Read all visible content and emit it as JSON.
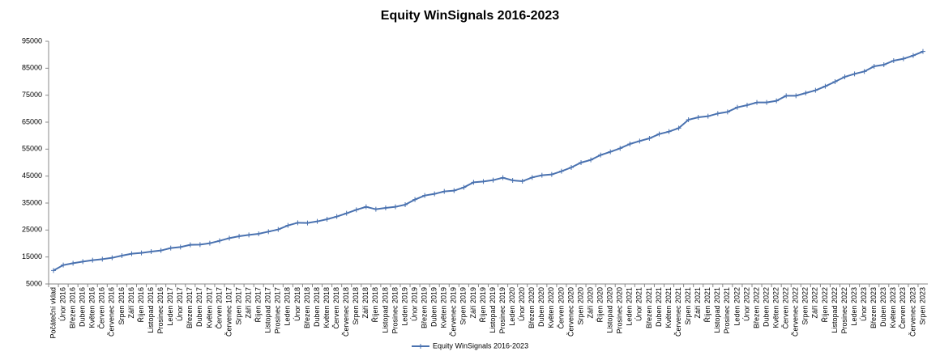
{
  "chart_data": {
    "type": "line",
    "title": "Equity WinSignals 2016-2023",
    "categories": [
      "Počáteční vklad",
      "Únor 2016",
      "Březen 2016",
      "Duben 2016",
      "Květen 2016",
      "Červen 2016",
      "Červenec 2016",
      "Srpen 2016",
      "Září 2016",
      "Říjen 2016",
      "Listopad 2016",
      "Prosinec 2016",
      "Leden 2017",
      "Únor 2017",
      "Březen 2017",
      "Duben 2017",
      "Květen 2017",
      "Červen 2017",
      "Červenec 1017",
      "Srpen 2017",
      "Září 2017",
      "Říjen 2017",
      "Listopad 2017",
      "Prosinec 2017",
      "Leden 2018",
      "Únor 2018",
      "Březen 2018",
      "Duben 2018",
      "Květen 2018",
      "Červen 2018",
      "Červenec 2018",
      "Srpen 2018",
      "Září 2018",
      "Říjen 2018",
      "Listopad 2018",
      "Prosinec 2018",
      "Leden 2019",
      "Únor 2019",
      "Březen 2019",
      "Duben 2019",
      "Květen 2019",
      "Červenec 2019",
      "Srpen 2019",
      "Září 2019",
      "Říjen 2019",
      "Listopad 2019",
      "Prosinec 2019",
      "Leden 2020",
      "Únor 2020",
      "Březen 2020",
      "Duben 2020",
      "Květen 2020",
      "Červen 2020",
      "Červenec 2020",
      "Srpen 2020",
      "Září 2020",
      "Říjen 2020",
      "Listopad 2020",
      "Prosinec 2020",
      "Leden 2021",
      "Únor 2021",
      "Březen 2021",
      "Duben 2021",
      "Květen 2021",
      "Červenec 2021",
      "Srpen 2021",
      "Září 2021",
      "Říjen 2021",
      "Listopad 2021",
      "Prosinec 2021",
      "Leden 2022",
      "Únor 2022",
      "Březen 2022",
      "Duben 2022",
      "Květen 2022",
      "Červen 2022",
      "Červenec 2022",
      "Srpen 2022",
      "Září 2022",
      "Říjen 2022",
      "Listopad 2022",
      "Prosinec 2022",
      "Leden 2023",
      "Únor 2023",
      "Březen 2023",
      "Duben 2023",
      "Květen 2023",
      "Červen 2023",
      "Červenec 2023",
      "Srpen 2023"
    ],
    "series": [
      {
        "name": "Equity WinSignals 2016-2023",
        "color": "#4a72b0",
        "values": [
          10000,
          12000,
          12700,
          13300,
          13800,
          14200,
          14700,
          15500,
          16200,
          16500,
          17000,
          17400,
          18300,
          18700,
          19500,
          19600,
          20100,
          21000,
          22000,
          22700,
          23200,
          23600,
          24400,
          25200,
          26700,
          27700,
          27600,
          28200,
          29000,
          30000,
          31200,
          32500,
          33600,
          32700,
          33200,
          33600,
          34400,
          36300,
          37800,
          38400,
          39300,
          39600,
          40800,
          42700,
          43000,
          43500,
          44400,
          43400,
          43100,
          44500,
          45300,
          45600,
          46800,
          48200,
          50000,
          51000,
          52800,
          54000,
          55300,
          56900,
          58000,
          59000,
          60600,
          61500,
          62800,
          65900,
          66800,
          67200,
          68200,
          68800,
          70500,
          71300,
          72300,
          72300,
          72900,
          74800,
          74800,
          75800,
          76800,
          78300,
          80000,
          81800,
          82900,
          83800,
          85700,
          86300,
          87800,
          88500,
          89700,
          91200
        ]
      }
    ],
    "ylim": [
      5000,
      95000
    ],
    "yticks": [
      5000,
      15000,
      25000,
      35000,
      45000,
      55000,
      65000,
      75000,
      85000,
      95000
    ],
    "legend": "bottom"
  }
}
